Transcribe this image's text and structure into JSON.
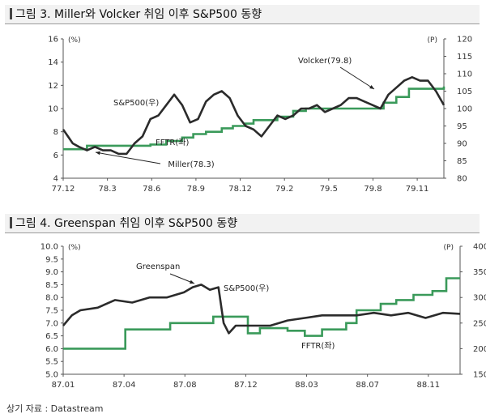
{
  "charts": [
    {
      "title": "그림 3. Miller와 Volcker 취임 이후 S&P500 동향",
      "chart_data": {
        "type": "line",
        "x_ticks": [
          "77.12",
          "78.3",
          "78.6",
          "78.9",
          "78.12",
          "79.2",
          "79.5",
          "79.8",
          "79.11"
        ],
        "x_range": [
          0,
          24
        ],
        "y_left": {
          "unit": "(%)",
          "range": [
            4,
            16
          ],
          "ticks": [
            4,
            6,
            8,
            10,
            12,
            14,
            16
          ]
        },
        "y_right": {
          "unit": "(P)",
          "range": [
            80,
            120
          ],
          "ticks": [
            80,
            85,
            90,
            95,
            100,
            105,
            110,
            115,
            120
          ]
        },
        "series": [
          {
            "name": "FFTR(좌)",
            "axis": "left",
            "color": "#3a9a5a",
            "x": [
              0,
              1.5,
              2.5,
              4.5,
              5.5,
              6.5,
              7.5,
              8.2,
              9,
              10,
              10.7,
              11.5,
              12,
              13.5,
              14.5,
              15.3,
              16,
              17.5,
              19,
              20.2,
              21,
              21.8,
              24
            ],
            "y": [
              6.5,
              6.8,
              6.8,
              6.8,
              6.9,
              7.2,
              7.5,
              7.8,
              8.0,
              8.3,
              8.5,
              8.7,
              9.0,
              9.3,
              9.8,
              10.0,
              10.0,
              10.0,
              10.0,
              10.5,
              11.0,
              11.7,
              11.9
            ]
          },
          {
            "name": "S&P500(우)",
            "axis": "right",
            "color": "#2b2b2b",
            "x": [
              0,
              0.3,
              0.6,
              1,
              1.5,
              2,
              2.5,
              3,
              3.5,
              4,
              4.5,
              5,
              5.5,
              6,
              6.5,
              7,
              7.5,
              8,
              8.5,
              9,
              9.5,
              10,
              10.5,
              11,
              11.5,
              12,
              12.5,
              13,
              13.5,
              14,
              14.5,
              15,
              15.5,
              16,
              16.5,
              17,
              17.5,
              18,
              18.5,
              19,
              19.5,
              20,
              20.5,
              21,
              21.5,
              22,
              22.5,
              23,
              23.5,
              24
            ],
            "y": [
              94,
              92,
              90,
              89,
              88,
              89,
              88,
              88,
              87,
              87,
              90,
              92,
              97,
              98,
              101,
              104,
              101,
              96,
              97,
              102,
              104,
              105,
              103,
              98,
              95,
              94,
              92,
              95,
              98,
              97,
              98,
              100,
              100,
              101,
              99,
              100,
              101,
              103,
              103,
              102,
              101,
              100,
              104,
              106,
              108,
              109,
              108,
              108,
              105,
              101
            ]
          }
        ],
        "annotations": [
          {
            "text": "S&P500(우)"
          },
          {
            "text": "FFTR(좌)"
          },
          {
            "text": "Miller(78.3)"
          },
          {
            "text": "Volcker(79.8)"
          }
        ],
        "grid": false,
        "legend": "none"
      }
    },
    {
      "title": "그림 4. Greenspan 취임 이후 S&P500 동향",
      "chart_data": {
        "type": "line",
        "x_ticks": [
          "87.01",
          "87.04",
          "87.08",
          "87.12",
          "88.03",
          "88.07",
          "88.11"
        ],
        "x_range": [
          0,
          23
        ],
        "y_left": {
          "unit": "(%)",
          "range": [
            5.0,
            10.0
          ],
          "ticks": [
            5.0,
            5.5,
            6.0,
            6.5,
            7.0,
            7.5,
            8.0,
            8.5,
            9.0,
            9.5,
            10.0
          ]
        },
        "y_right": {
          "unit": "(P)",
          "range": [
            150,
            400
          ],
          "ticks": [
            150,
            200,
            250,
            300,
            350,
            400
          ]
        },
        "series": [
          {
            "name": "FFTR(좌)",
            "axis": "left",
            "color": "#3a9a5a",
            "x": [
              0,
              2.8,
              3.6,
              5.2,
              6.2,
              8.7,
              10.7,
              11.4,
              12,
              13,
              14,
              14.5,
              15,
              15.6,
              16.4,
              17,
              17.7,
              18.4,
              19.3,
              20.3,
              21.4,
              22.2,
              23
            ],
            "y": [
              6.0,
              6.0,
              6.75,
              6.75,
              7.0,
              7.25,
              6.6,
              6.8,
              6.8,
              6.7,
              6.5,
              6.5,
              6.75,
              6.75,
              7.0,
              7.5,
              7.5,
              7.75,
              7.9,
              8.1,
              8.25,
              8.75,
              8.75
            ]
          },
          {
            "name": "S&P500(우)",
            "axis": "right",
            "color": "#2b2b2b",
            "x": [
              0,
              0.5,
              1,
              2,
              3,
              4,
              5,
              6,
              7,
              7.5,
              8,
              8.5,
              9,
              9.3,
              9.6,
              10,
              11,
              12,
              13,
              14,
              15,
              16,
              17,
              18,
              19,
              20,
              21,
              22,
              23
            ],
            "y": [
              245,
              265,
              275,
              280,
              295,
              290,
              300,
              300,
              310,
              320,
              325,
              315,
              320,
              250,
              230,
              245,
              245,
              245,
              255,
              260,
              265,
              265,
              265,
              270,
              265,
              270,
              260,
              270,
              268
            ]
          }
        ],
        "annotations": [
          {
            "text": "Greenspan"
          },
          {
            "text": "S&P500(우)"
          },
          {
            "text": "FFTR(좌)"
          }
        ],
        "grid": false,
        "legend": "none"
      }
    }
  ],
  "source": "상기 자료 : Datastream"
}
